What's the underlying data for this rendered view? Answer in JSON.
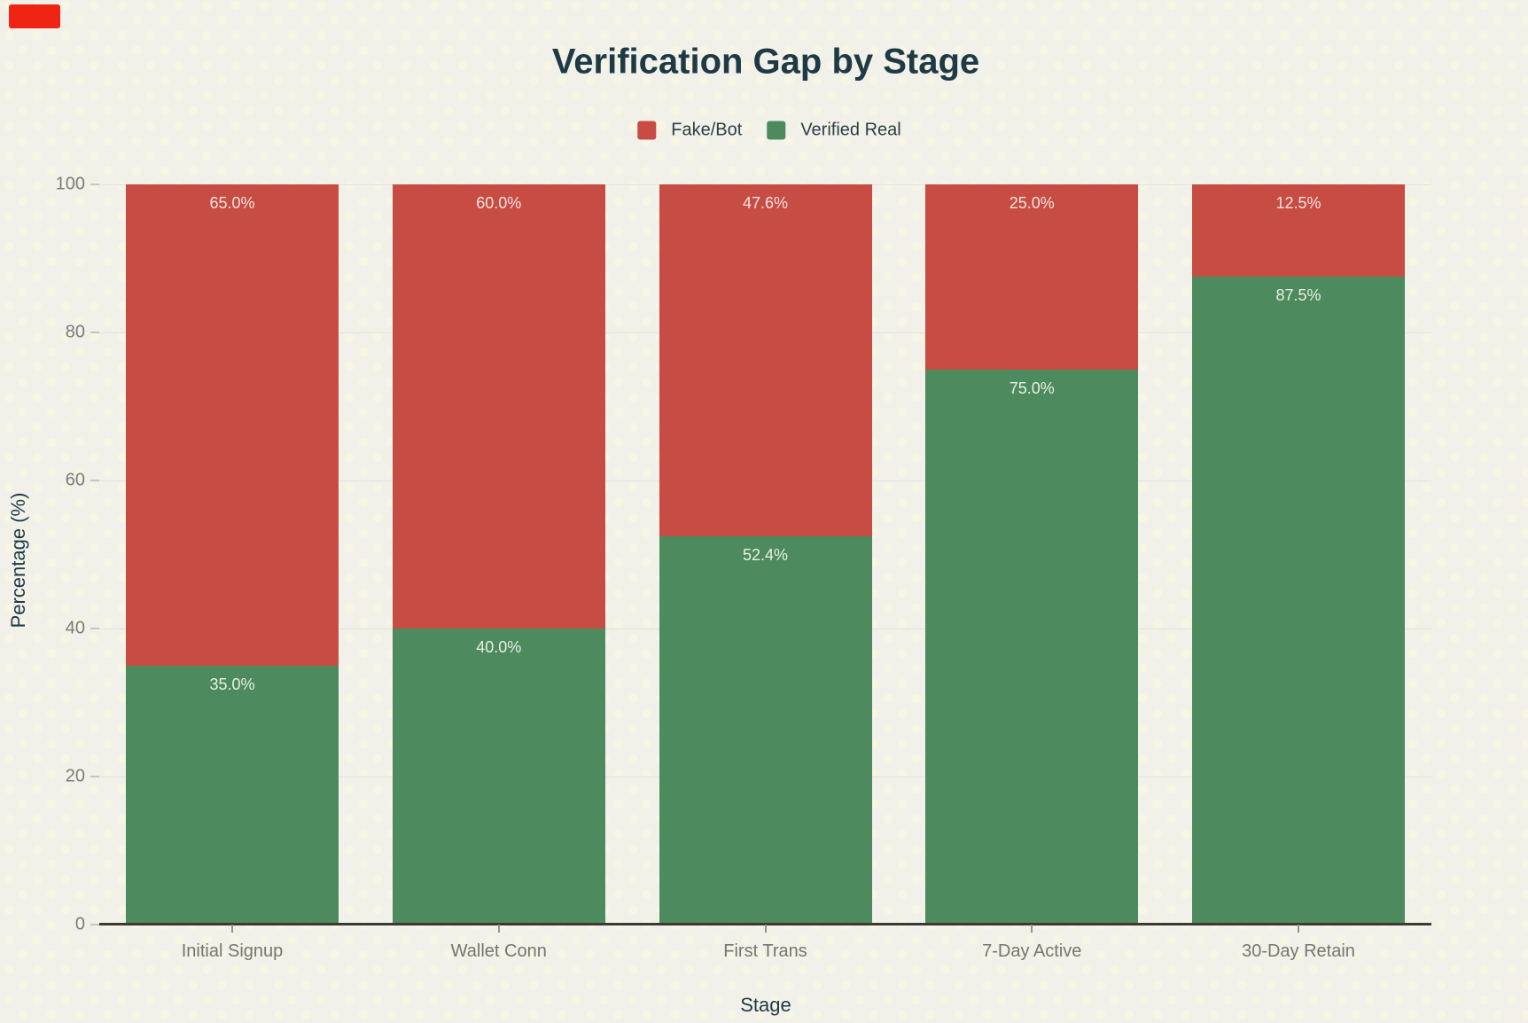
{
  "chart_data": {
    "type": "bar",
    "stacked": true,
    "title": "Verification Gap by Stage",
    "xlabel": "Stage",
    "ylabel": "Percentage (%)",
    "ylim": [
      0,
      100
    ],
    "yticks": [
      0,
      20,
      40,
      60,
      80,
      100
    ],
    "grid": true,
    "legend_position": "top",
    "categories": [
      "Initial Signup",
      "Wallet Conn",
      "First Trans",
      "7-Day Active",
      "30-Day Retain"
    ],
    "series": [
      {
        "name": "Verified Real",
        "color": "#4d8a5e",
        "values": [
          35.0,
          40.0,
          52.4,
          75.0,
          87.5
        ]
      },
      {
        "name": "Fake/Bot",
        "color": "#c74c43",
        "values": [
          65.0,
          60.0,
          47.6,
          25.0,
          12.5
        ]
      }
    ],
    "legend": [
      {
        "label": "Fake/Bot",
        "color": "#c74c43"
      },
      {
        "label": "Verified Real",
        "color": "#4d8a5e"
      }
    ],
    "value_label_format": "one_decimal_percent"
  },
  "decorations": {
    "recording_indicator_color": "#ef2413"
  },
  "theme": {
    "background": "#f1f1ea",
    "background_dot": "#f7f5e4",
    "title_color": "#1e3a44",
    "tick_label_color": "#7c7c76",
    "gridline_color": "#e3e1da",
    "axis_line_color": "#3a3a33"
  }
}
